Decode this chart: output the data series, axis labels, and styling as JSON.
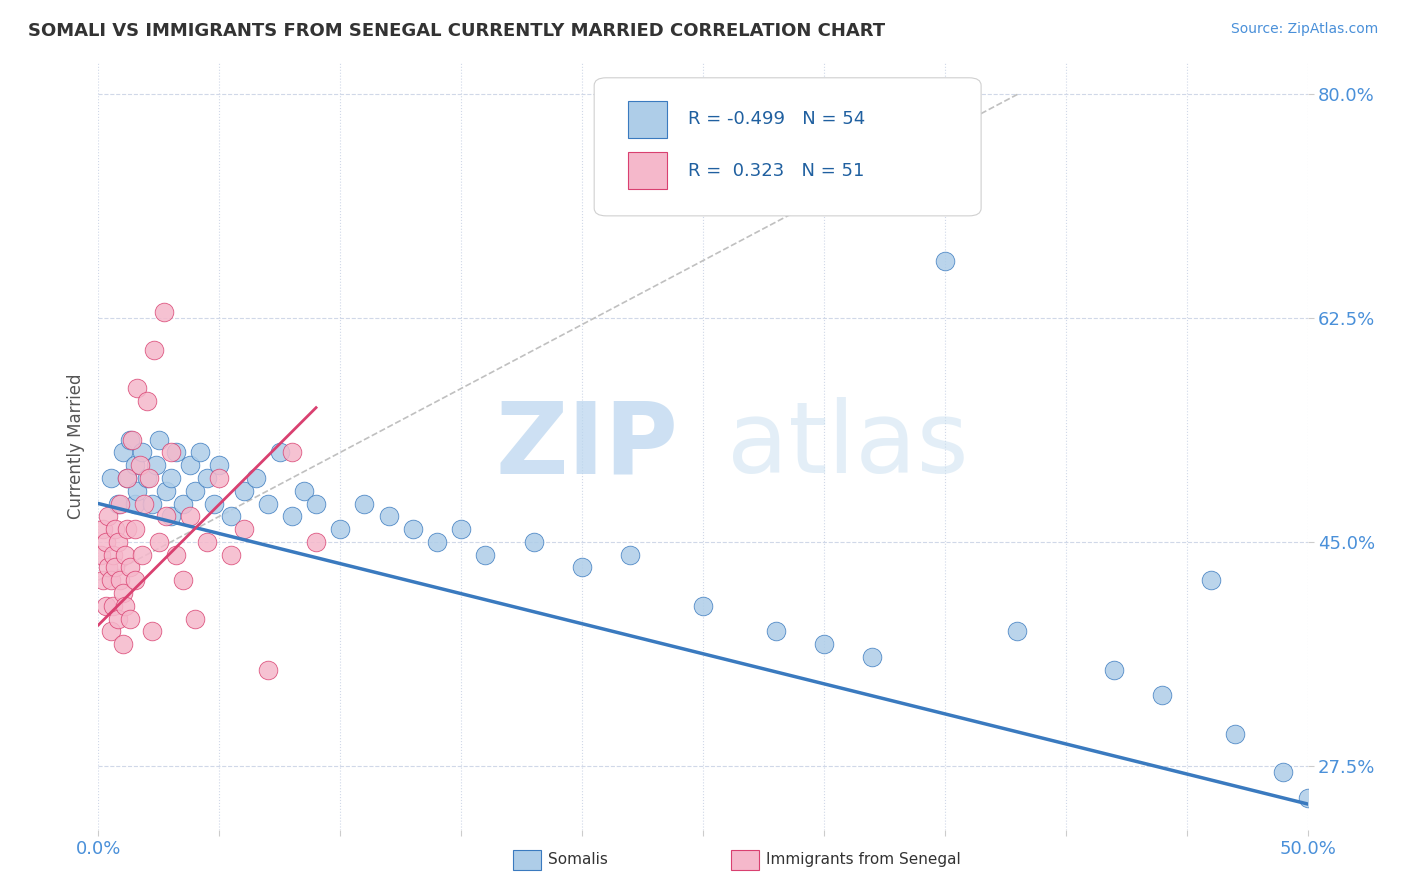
{
  "title": "SOMALI VS IMMIGRANTS FROM SENEGAL CURRENTLY MARRIED CORRELATION CHART",
  "source": "Source: ZipAtlas.com",
  "ylabel": "Currently Married",
  "xlim": [
    0.0,
    0.5
  ],
  "ylim": [
    0.225,
    0.825
  ],
  "ytick_positions": [
    0.275,
    0.45,
    0.625,
    0.8
  ],
  "ytick_labels": [
    "27.5%",
    "45.0%",
    "62.5%",
    "80.0%"
  ],
  "R_somali": -0.499,
  "N_somali": 54,
  "R_senegal": 0.323,
  "N_senegal": 51,
  "somali_color": "#aecde8",
  "senegal_color": "#f5b8cb",
  "trend_somali_color": "#3a7abf",
  "trend_senegal_color": "#d94070",
  "legend_label_somali": "Somalis",
  "legend_label_senegal": "Immigrants from Senegal",
  "watermark_zip": "ZIP",
  "watermark_atlas": "atlas",
  "somali_x": [
    0.005,
    0.008,
    0.01,
    0.012,
    0.013,
    0.015,
    0.015,
    0.016,
    0.018,
    0.02,
    0.022,
    0.024,
    0.025,
    0.028,
    0.03,
    0.03,
    0.032,
    0.035,
    0.038,
    0.04,
    0.042,
    0.045,
    0.048,
    0.05,
    0.055,
    0.06,
    0.065,
    0.07,
    0.075,
    0.08,
    0.085,
    0.09,
    0.1,
    0.11,
    0.12,
    0.13,
    0.14,
    0.15,
    0.16,
    0.18,
    0.2,
    0.22,
    0.25,
    0.28,
    0.3,
    0.32,
    0.35,
    0.38,
    0.42,
    0.44,
    0.46,
    0.47,
    0.49,
    0.5
  ],
  "somali_y": [
    0.5,
    0.48,
    0.52,
    0.5,
    0.53,
    0.51,
    0.48,
    0.49,
    0.52,
    0.5,
    0.48,
    0.51,
    0.53,
    0.49,
    0.5,
    0.47,
    0.52,
    0.48,
    0.51,
    0.49,
    0.52,
    0.5,
    0.48,
    0.51,
    0.47,
    0.49,
    0.5,
    0.48,
    0.52,
    0.47,
    0.49,
    0.48,
    0.46,
    0.48,
    0.47,
    0.46,
    0.45,
    0.46,
    0.44,
    0.45,
    0.43,
    0.44,
    0.4,
    0.38,
    0.37,
    0.36,
    0.67,
    0.38,
    0.35,
    0.33,
    0.42,
    0.3,
    0.27,
    0.25
  ],
  "senegal_x": [
    0.001,
    0.002,
    0.002,
    0.003,
    0.003,
    0.004,
    0.004,
    0.005,
    0.005,
    0.006,
    0.006,
    0.007,
    0.007,
    0.008,
    0.008,
    0.009,
    0.009,
    0.01,
    0.01,
    0.011,
    0.011,
    0.012,
    0.012,
    0.013,
    0.013,
    0.014,
    0.015,
    0.015,
    0.016,
    0.017,
    0.018,
    0.019,
    0.02,
    0.021,
    0.022,
    0.023,
    0.025,
    0.027,
    0.028,
    0.03,
    0.032,
    0.035,
    0.038,
    0.04,
    0.045,
    0.05,
    0.055,
    0.06,
    0.07,
    0.08,
    0.09
  ],
  "senegal_y": [
    0.44,
    0.46,
    0.42,
    0.45,
    0.4,
    0.43,
    0.47,
    0.42,
    0.38,
    0.44,
    0.4,
    0.46,
    0.43,
    0.39,
    0.45,
    0.42,
    0.48,
    0.41,
    0.37,
    0.44,
    0.4,
    0.46,
    0.5,
    0.43,
    0.39,
    0.53,
    0.46,
    0.42,
    0.57,
    0.51,
    0.44,
    0.48,
    0.56,
    0.5,
    0.38,
    0.6,
    0.45,
    0.63,
    0.47,
    0.52,
    0.44,
    0.42,
    0.47,
    0.39,
    0.45,
    0.5,
    0.44,
    0.46,
    0.35,
    0.52,
    0.45
  ],
  "ref_line": [
    [
      0.0,
      0.42
    ],
    [
      0.38,
      0.8
    ]
  ]
}
